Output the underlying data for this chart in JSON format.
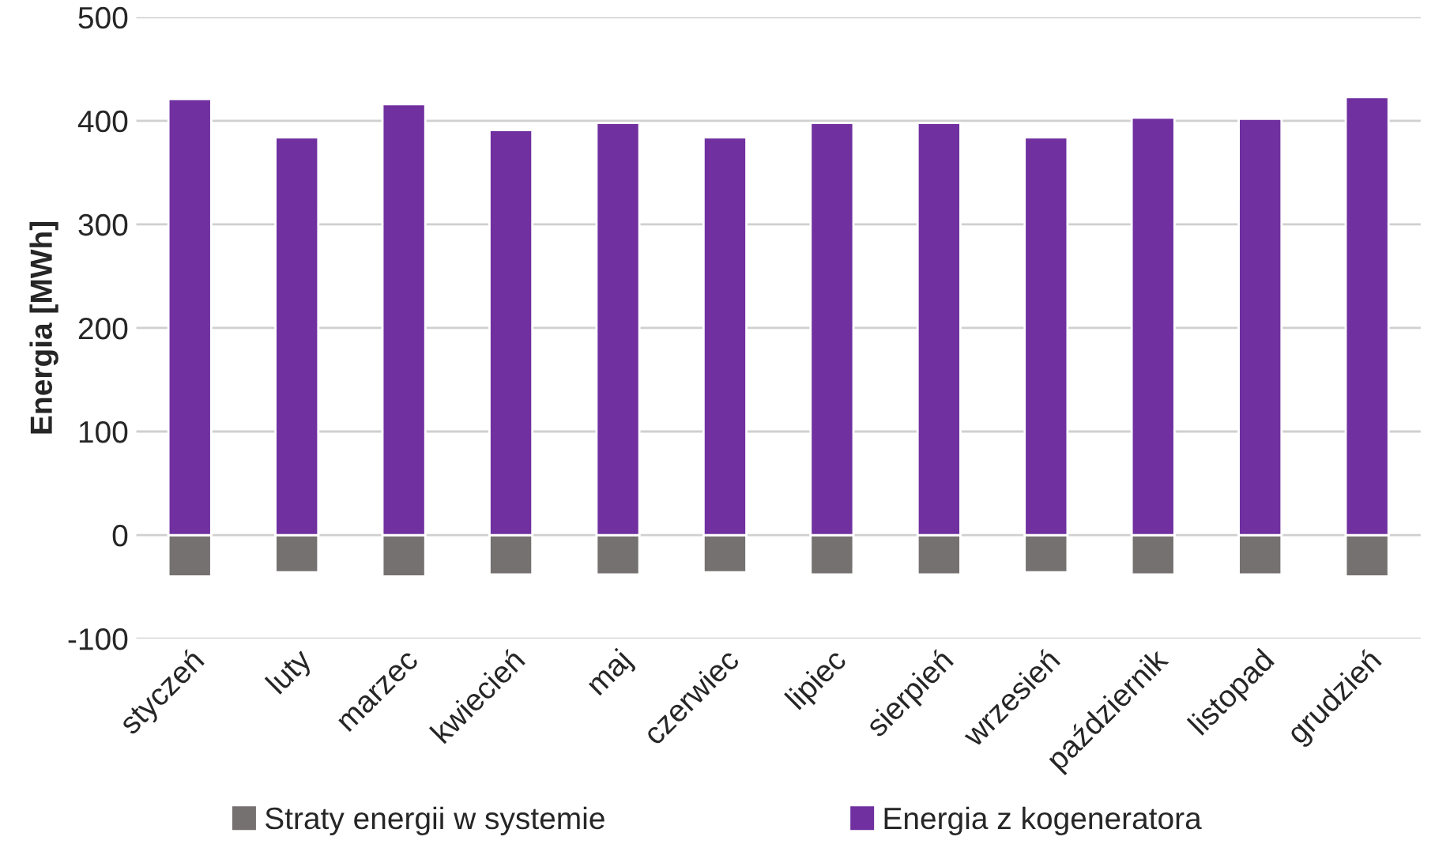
{
  "chart_data": {
    "type": "bar",
    "stacked": true,
    "ylabel": "Energia [MWh]",
    "categories": [
      "styczeń",
      "luty",
      "marzec",
      "kwiecień",
      "maj",
      "czerwiec",
      "lipiec",
      "sierpień",
      "wrzesień",
      "październik",
      "listopad",
      "grudzień"
    ],
    "series": [
      {
        "name": "Straty energii w systemie",
        "color": "#767171",
        "values": [
          -40,
          -36,
          -40,
          -38,
          -38,
          -36,
          -38,
          -38,
          -36,
          -38,
          -38,
          -40
        ]
      },
      {
        "name": "Energia z kogeneratora",
        "color": "#7030a0",
        "values": [
          421,
          384,
          416,
          391,
          398,
          384,
          398,
          398,
          384,
          403,
          402,
          423
        ]
      }
    ],
    "ylim": [
      -100,
      500
    ],
    "yticks": [
      -100,
      0,
      100,
      200,
      300,
      400,
      500
    ],
    "grid": "y",
    "legend": "bottom"
  }
}
